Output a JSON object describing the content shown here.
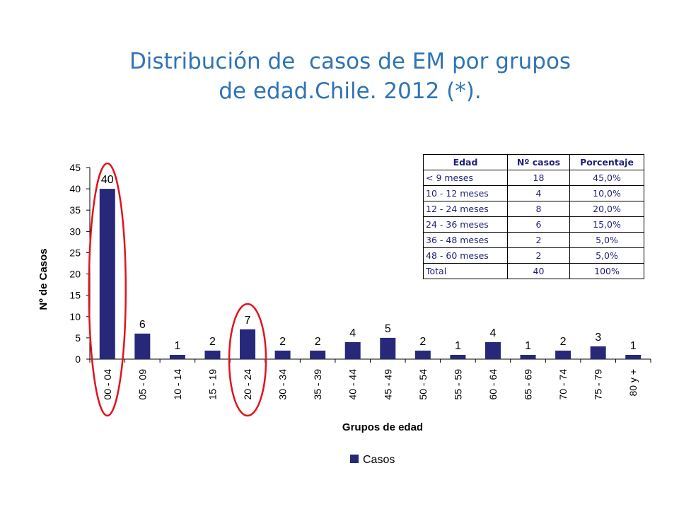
{
  "slide": {
    "title_line1": "Distribución de  casos de EM por grupos",
    "title_line2": "de edad.Chile. 2012 (*)."
  },
  "chart_data": {
    "type": "bar",
    "categories": [
      "00 - 04",
      "05 - 09",
      "10 - 14",
      "15 - 19",
      "20 - 24",
      "30 - 34",
      "35 - 39",
      "40 - 44",
      "45 - 49",
      "50 - 54",
      "55 - 59",
      "60 - 64",
      "65 - 69",
      "70 - 74",
      "75 - 79",
      "80 y +"
    ],
    "series": [
      {
        "name": "Casos",
        "values": [
          40,
          6,
          1,
          2,
          7,
          2,
          2,
          4,
          5,
          2,
          1,
          4,
          1,
          2,
          3,
          1
        ],
        "color": "#28287A"
      }
    ],
    "xlabel": "Grupos de edad",
    "ylabel": "Nº de Casos",
    "ylim": [
      0,
      45
    ],
    "yticks": [
      0,
      5,
      10,
      15,
      20,
      25,
      30,
      35,
      40,
      45
    ],
    "data_labels": true,
    "legend_position": "bottom",
    "grid": false,
    "highlighted_categories": [
      "00 - 04",
      "20 - 24"
    ],
    "highlight_color": "#E0141E"
  },
  "table": {
    "headers": [
      "Edad",
      "Nº casos",
      "Porcentaje"
    ],
    "rows": [
      [
        "< 9 meses",
        "18",
        "45,0%"
      ],
      [
        "10 - 12 meses",
        "4",
        "10,0%"
      ],
      [
        "12 - 24 meses",
        "8",
        "20,0%"
      ],
      [
        "24 - 36 meses",
        "6",
        "15,0%"
      ],
      [
        "36 - 48 meses",
        "2",
        "5,0%"
      ],
      [
        "48 - 60 meses",
        "2",
        "5,0%"
      ],
      [
        "Total",
        "40",
        "100%"
      ]
    ]
  }
}
